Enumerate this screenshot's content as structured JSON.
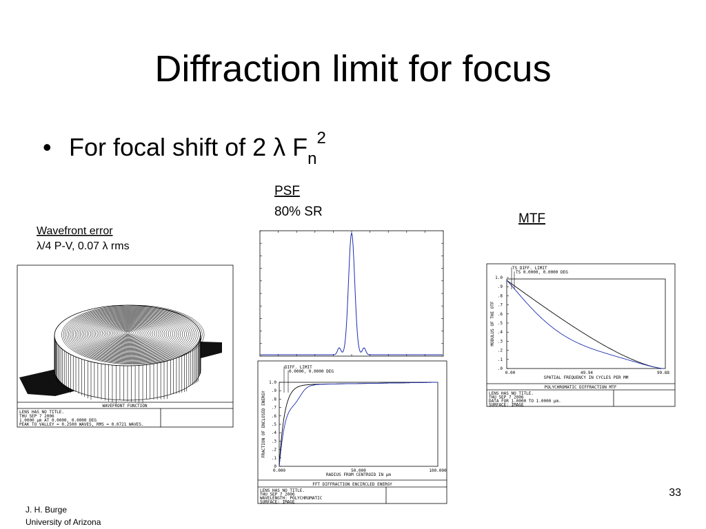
{
  "title": "Diffraction limit for focus",
  "bullet": {
    "text": "For focal shift of 2 λ F",
    "sub": "n",
    "sup": "2"
  },
  "psf_label": {
    "title": "PSF",
    "text": "80% SR"
  },
  "mtf_label": {
    "title": "MTF"
  },
  "wavefront_label": {
    "title": "Wavefront error",
    "text": "λ/4 P-V,  0.07 λ rms"
  },
  "wavefront_panel": {
    "caption": "WAVEFRONT FUNCTION",
    "info": [
      "LENS HAS NO TITLE.",
      "THU SEP 7 2006",
      "1.0000 µm AT 0.0000, 0.0000 DEG",
      "PEAK TO VALLEY = 0.2500 WAVES, RMS = 0.0721 WAVES."
    ]
  },
  "ee_panel": {
    "legend": [
      "DIFF. LIMIT",
      "0.0000, 0.0000 DEG"
    ],
    "yticks": [
      "1.0",
      ".9",
      ".8",
      ".7",
      ".6",
      ".5",
      ".4",
      ".3",
      ".2",
      ".1",
      "0"
    ],
    "xticks": [
      "0.000",
      "50.000",
      "100.000"
    ],
    "ylabel": "FRACTION OF ENCLOSED ENERGY",
    "xlabel": "RADIUS FROM CENTROID IN µm",
    "caption": "FFT DIFFRACTION ENCIRCLED ENERGY",
    "info": [
      "LENS HAS NO TITLE.",
      "THU SEP 7 2006",
      "WAVELENGTH: POLYCHROMATIC",
      "SURFACE: IMAGE"
    ]
  },
  "mtf_panel": {
    "legend": [
      "TS DIFF. LIMIT",
      "TS 0.0000, 0.0000 DEG"
    ],
    "yticks": [
      "1.0",
      ".9",
      ".8",
      ".7",
      ".6",
      ".5",
      ".4",
      ".3",
      ".2",
      ".1",
      ".0"
    ],
    "xticks": [
      "0.00",
      "49.94",
      "99.88"
    ],
    "ylabel": "MODULUS OF THE OTF",
    "xlabel": "SPATIAL FREQUENCY IN CYCLES PER MM",
    "caption": "POLYCHROMATIC DIFFRACTION MTF",
    "info": [
      "LENS HAS NO TITLE.",
      "THU SEP 7 2006",
      "DATA FOR 1.0000 TO 1.0000 µm.",
      "SURFACE: IMAGE"
    ]
  },
  "footer": {
    "page": "33",
    "author": "J. H. Burge",
    "affiliation": "University of Arizona"
  }
}
